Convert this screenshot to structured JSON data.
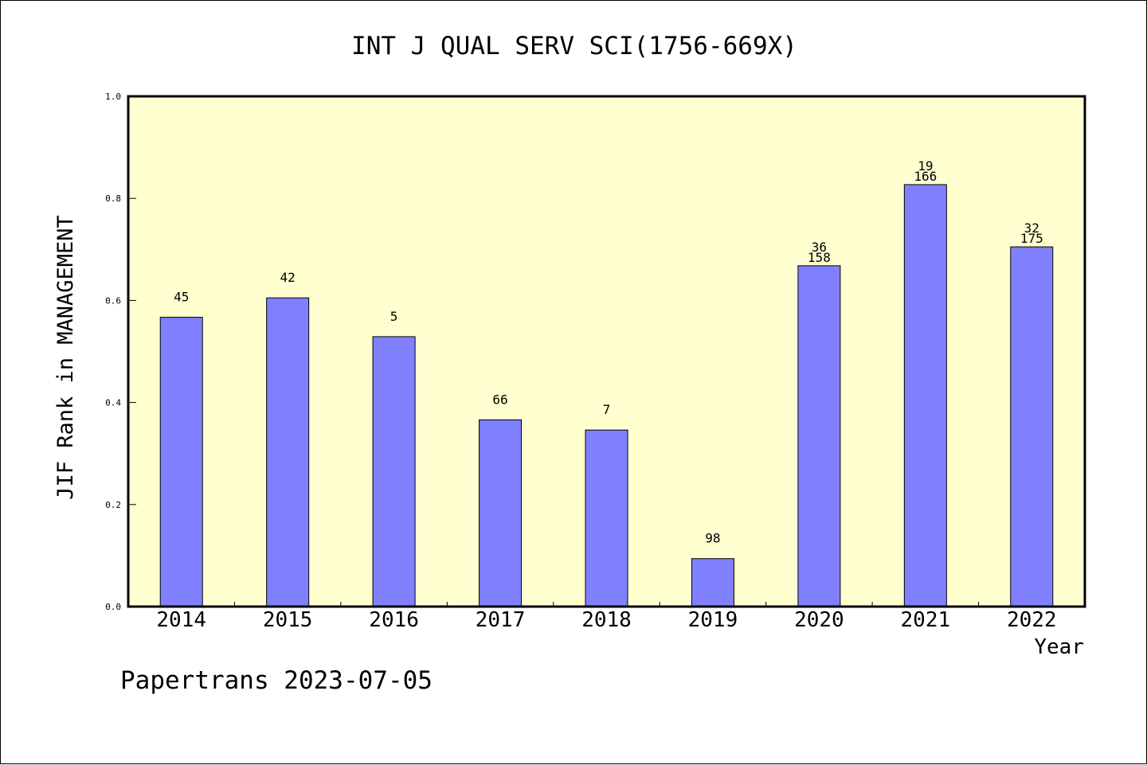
{
  "chart_data": {
    "type": "bar",
    "title": "INT J QUAL SERV SCI(1756-669X)",
    "xlabel": "Year",
    "ylabel": "JIF Rank in MANAGEMENT",
    "ylim": [
      0,
      1.0
    ],
    "yticks": [
      "0.0",
      "0.2",
      "0.4",
      "0.6",
      "0.8",
      "1.0"
    ],
    "categories": [
      "2014",
      "2015",
      "2016",
      "2017",
      "2018",
      "2019",
      "2020",
      "2021",
      "2022"
    ],
    "values": [
      0.567,
      0.605,
      0.529,
      0.366,
      0.346,
      0.094,
      0.668,
      0.827,
      0.705
    ],
    "labels_top": [
      "",
      "",
      "",
      "",
      "",
      "",
      "36",
      "19",
      "32"
    ],
    "labels_bottom": [
      "45",
      "42",
      "5",
      "66",
      "7",
      "98",
      "158",
      "166",
      "175"
    ],
    "colors": {
      "bar": "#8080ff",
      "plot_bg": "#ffffd0"
    },
    "grid": false
  },
  "footer": {
    "source": "Papertrans 2023-07-05"
  }
}
